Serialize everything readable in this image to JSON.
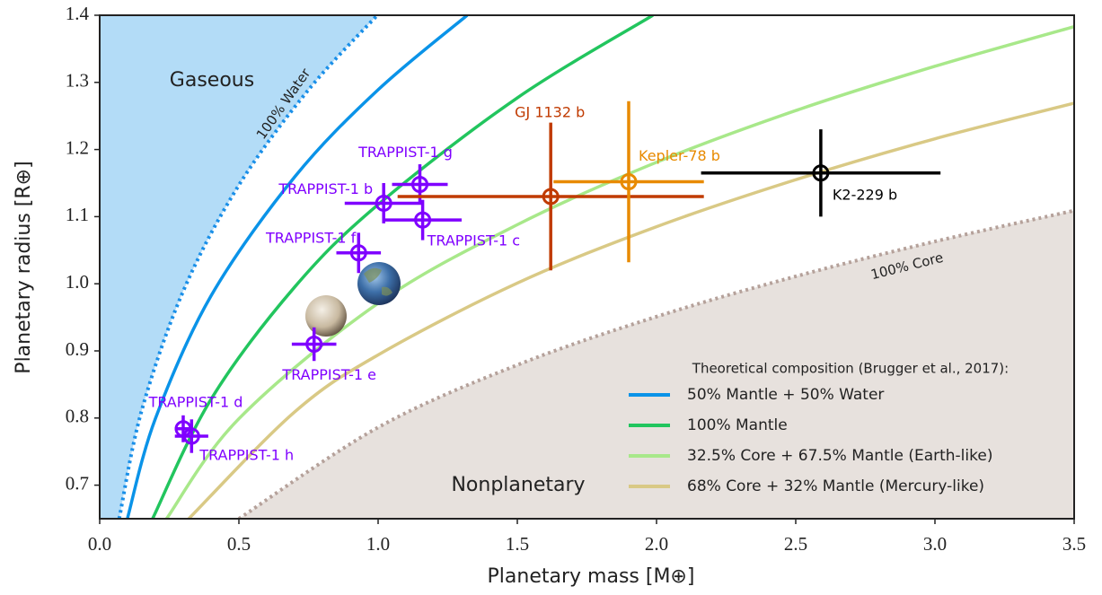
{
  "chart_data": {
    "type": "scatter",
    "x_label": "Planetary mass [M⊕]",
    "y_label": "Planetary radius [R⊕]",
    "xlim": [
      0,
      3.5
    ],
    "ylim": [
      0.65,
      1.4
    ],
    "xticks": [
      {
        "value": 0,
        "label": "0.0"
      },
      0.5,
      {
        "value": 1,
        "label": "1.0"
      },
      1.5,
      {
        "value": 2,
        "label": "2.0"
      },
      2.5,
      {
        "value": 3,
        "label": "3.0"
      },
      3.5
    ],
    "yticks": [
      0.7,
      0.8,
      0.9,
      {
        "value": 1,
        "label": "1.0"
      },
      1.1,
      1.2,
      1.3,
      1.4
    ],
    "legend_title": "Theoretical composition (Brugger et al., 2017):",
    "legend_position": "lower right",
    "annotations": [
      "Gaseous",
      "Nonplanetary",
      "100% Water",
      "100% Core"
    ],
    "boundaries": [
      {
        "color": "#1a8fe8",
        "fill": "#b3dcf7",
        "x": [
          0.07,
          0.15,
          0.3,
          0.5,
          0.75,
          0.997
        ],
        "y": [
          0.65,
          0.81,
          0.989,
          1.147,
          1.289,
          1.4
        ]
      },
      {
        "color": "#b5a19a",
        "fill": "#e7e1dd",
        "x": [
          0.5,
          1.0,
          1.5,
          2.0,
          2.5,
          3.0,
          3.5
        ],
        "y": [
          0.65,
          0.786,
          0.879,
          0.951,
          1.011,
          1.063,
          1.109
        ]
      }
    ],
    "series": [
      {
        "name": "50% Mantle + 50% Water",
        "color": "#0a93e8",
        "x": [
          0.1,
          0.2,
          0.4,
          0.7,
          1.0,
          1.32
        ],
        "y": [
          0.651,
          0.799,
          0.982,
          1.159,
          1.289,
          1.4
        ]
      },
      {
        "name": "100% Mantle",
        "color": "#22c55e",
        "x": [
          0.19,
          0.4,
          0.7,
          1.0,
          1.5,
          1.987
        ],
        "y": [
          0.65,
          0.828,
          0.995,
          1.118,
          1.277,
          1.4
        ]
      },
      {
        "name": "32.5% Core + 67.5% Mantle (Earth-like)",
        "color": "#a8e88a",
        "x": [
          0.24,
          0.5,
          1.0,
          1.5,
          2.0,
          2.5,
          3.0,
          3.5
        ],
        "y": [
          0.65,
          0.799,
          0.971,
          1.088,
          1.181,
          1.258,
          1.324,
          1.383
        ]
      },
      {
        "name": "68% Core + 32% Mantle (Mercury-like)",
        "color": "#d9c985",
        "x": [
          0.32,
          0.7,
          1.0,
          1.5,
          2.0,
          2.5,
          3.0,
          3.5
        ],
        "y": [
          0.65,
          0.809,
          0.894,
          1.001,
          1.085,
          1.155,
          1.216,
          1.269
        ]
      }
    ],
    "points": [
      {
        "name": "TRAPPIST-1 b",
        "color": "#7f00ff",
        "x": 1.02,
        "y": 1.12,
        "xerr": 0.14,
        "yerr": 0.03
      },
      {
        "name": "TRAPPIST-1 c",
        "color": "#7f00ff",
        "x": 1.16,
        "y": 1.095,
        "xerr": 0.14,
        "yerr": 0.03
      },
      {
        "name": "TRAPPIST-1 d",
        "color": "#7f00ff",
        "x": 0.3,
        "y": 0.784,
        "xerr": 0.03,
        "yerr": 0.02
      },
      {
        "name": "TRAPPIST-1 e",
        "color": "#7f00ff",
        "x": 0.77,
        "y": 0.91,
        "xerr": 0.08,
        "yerr": 0.025
      },
      {
        "name": "TRAPPIST-1 f",
        "color": "#7f00ff",
        "x": 0.93,
        "y": 1.046,
        "xerr": 0.08,
        "yerr": 0.03
      },
      {
        "name": "TRAPPIST-1 g",
        "color": "#7f00ff",
        "x": 1.15,
        "y": 1.148,
        "xerr": 0.1,
        "yerr": 0.03
      },
      {
        "name": "TRAPPIST-1 h",
        "color": "#7f00ff",
        "x": 0.33,
        "y": 0.773,
        "xerr": 0.06,
        "yerr": 0.025
      },
      {
        "name": "GJ 1132 b",
        "color": "#c03a00",
        "x": 1.62,
        "y": 1.13,
        "xerr": 0.55,
        "yerr": 0.11
      },
      {
        "name": "Kepler-78 b",
        "color": "#e88a00",
        "x": 1.9,
        "y": 1.152,
        "xerr": 0.27,
        "yerr": 0.12
      },
      {
        "name": "K2-229 b",
        "color": "#000000",
        "x": 2.59,
        "y": 1.165,
        "xerr": 0.43,
        "yerr": 0.065
      }
    ]
  }
}
